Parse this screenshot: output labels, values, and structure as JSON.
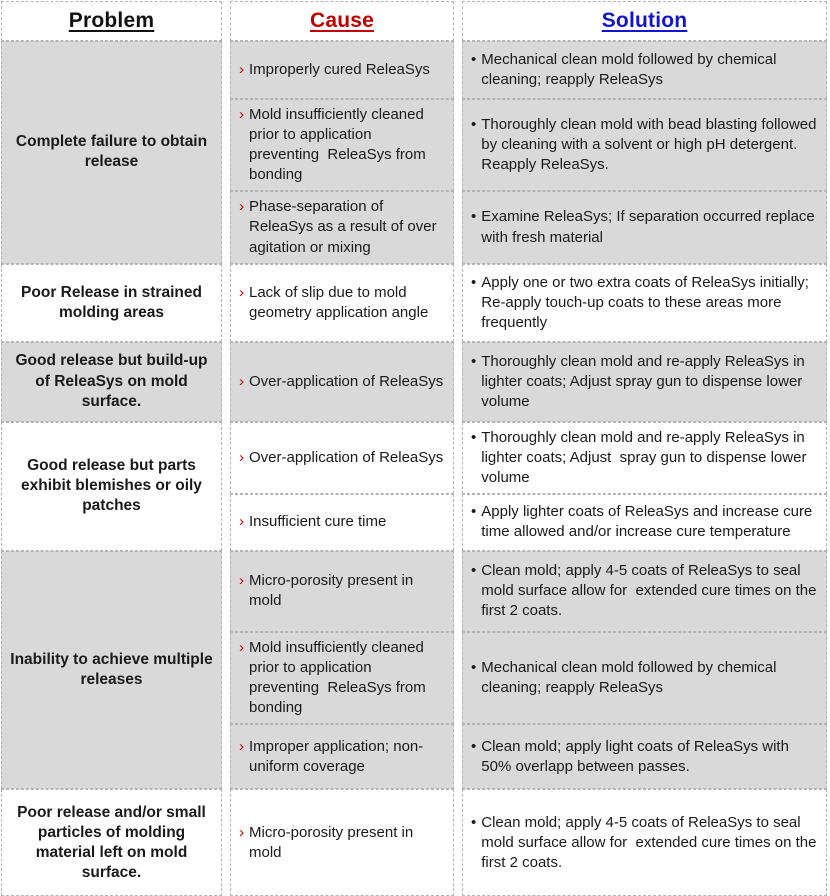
{
  "table": {
    "headers": [
      {
        "label": "Problem",
        "color": "#111111"
      },
      {
        "label": "Cause",
        "color": "#c00000"
      },
      {
        "label": "Solution",
        "color": "#1414cc"
      }
    ],
    "cause_bullet": "›",
    "solution_bullet": "•",
    "colors": {
      "row_shaded": "#d9d9d9",
      "row_plain": "#ffffff",
      "border": "#b3b3b3",
      "cause_bullet": "#c00000"
    },
    "groups": [
      {
        "problem": "Complete failure to obtain release",
        "rows": [
          {
            "cause": "Improperly cured ReleaSys",
            "solution": "Mechanical clean mold followed by chemical cleaning; reapply ReleaSys"
          },
          {
            "cause": "Mold insufficiently cleaned prior to application preventing  ReleaSys from bonding",
            "solution": "Thoroughly clean mold with bead blasting followed by cleaning with a solvent or high pH detergent.  Reapply ReleaSys."
          },
          {
            "cause": "Phase-separation of ReleaSys as a result of over agitation or mixing",
            "solution": "Examine ReleaSys; If separation occurred replace with fresh material"
          }
        ]
      },
      {
        "problem": "Poor Release in strained molding areas",
        "rows": [
          {
            "cause": "Lack of slip due to mold geometry application angle",
            "solution": "Apply one or two extra coats of ReleaSys initially; Re-apply touch-up coats to these areas more frequently"
          }
        ]
      },
      {
        "problem": "Good release but build-up of ReleaSys on mold surface.",
        "rows": [
          {
            "cause": "Over-application of ReleaSys",
            "solution": "Thoroughly clean mold and re-apply ReleaSys in lighter coats; Adjust spray gun to dispense lower volume"
          }
        ]
      },
      {
        "problem": "Good release but parts exhibit blemishes or oily patches",
        "rows": [
          {
            "cause": "Over-application of ReleaSys",
            "solution": "Thoroughly clean mold and re-apply ReleaSys in lighter coats; Adjust  spray gun to dispense lower volume"
          },
          {
            "cause": "Insufficient cure time",
            "solution": "Apply lighter coats of ReleaSys and increase cure time allowed and/or increase cure temperature"
          }
        ]
      },
      {
        "problem": "Inability to achieve multiple releases",
        "rows": [
          {
            "cause": "Micro-porosity present in mold",
            "solution": "Clean mold; apply 4-5 coats of ReleaSys to seal mold surface allow for  extended cure times on the first 2 coats."
          },
          {
            "cause": "Mold insufficiently cleaned prior to application preventing  ReleaSys from bonding",
            "solution": "Mechanical clean mold followed by chemical cleaning; reapply ReleaSys"
          },
          {
            "cause": "Improper application; non-uniform coverage",
            "solution": "Clean mold; apply light coats of ReleaSys with 50% overlapp between passes."
          }
        ]
      },
      {
        "problem": "Poor release and/or small particles of molding material left on mold surface.",
        "rows": [
          {
            "cause": "Micro-porosity present in mold",
            "solution": "Clean mold; apply 4-5 coats of ReleaSys to seal mold surface allow for  extended cure times on the first 2 coats."
          }
        ]
      }
    ]
  }
}
